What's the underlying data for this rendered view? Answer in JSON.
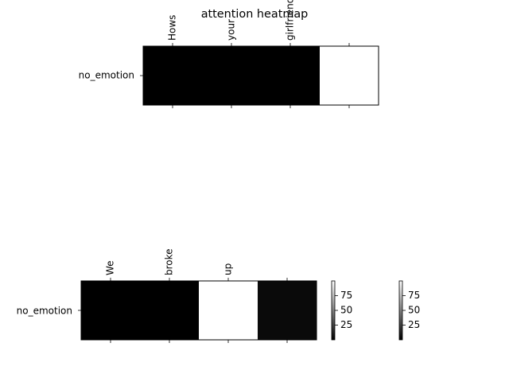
{
  "figure": {
    "title": "attention heatmap",
    "colormap": "gray",
    "colors": {
      "low": "#000000",
      "high": "#ffffff"
    }
  },
  "chart_data": [
    {
      "type": "heatmap",
      "title": "attention heatmap",
      "row_labels": [
        "no_emotion"
      ],
      "column_labels": [
        "Hows",
        "your",
        "girlfriend"
      ],
      "n_columns": 4,
      "values": [
        [
          0,
          0,
          0,
          100
        ]
      ],
      "value_range": [
        0,
        100
      ],
      "tick_labels_position": "top"
    },
    {
      "type": "heatmap",
      "title": "",
      "row_labels": [
        "no_emotion"
      ],
      "column_labels": [
        "We",
        "broke",
        "up"
      ],
      "n_columns": 4,
      "values": [
        [
          0,
          0,
          100,
          4
        ]
      ],
      "value_range": [
        0,
        100
      ],
      "tick_labels_position": "top"
    }
  ],
  "colorbars": [
    {
      "ticks": [
        "75",
        "50",
        "25"
      ],
      "tick_values": [
        75,
        50,
        25
      ],
      "range": [
        0,
        100
      ]
    },
    {
      "ticks": [
        "75",
        "50",
        "25"
      ],
      "tick_values": [
        75,
        50,
        25
      ],
      "range": [
        0,
        100
      ]
    }
  ]
}
